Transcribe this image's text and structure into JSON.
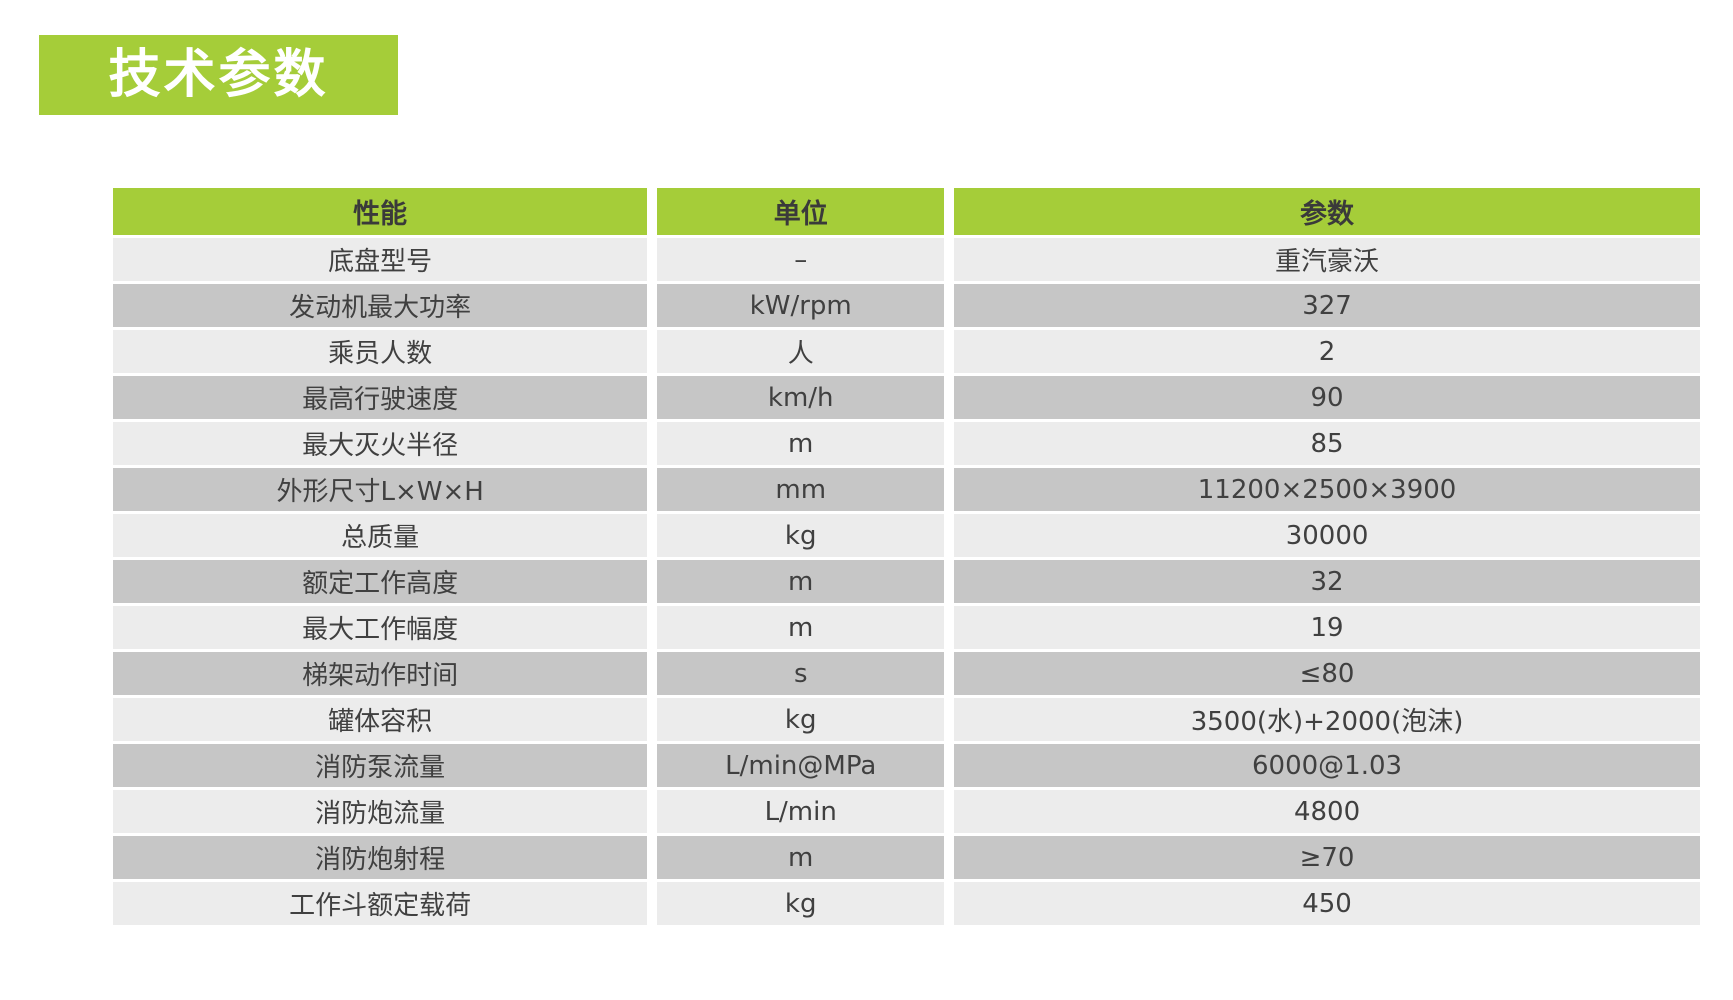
{
  "section": {
    "title": "技术参数"
  },
  "colors": {
    "accent_green": "#a5cd39",
    "row_light": "#ececec",
    "row_dark": "#c6c6c6",
    "header_text": "#3a3a3a",
    "body_text": "#404040",
    "title_text": "#ffffff"
  },
  "table": {
    "headers": [
      "性能",
      "单位",
      "参数"
    ],
    "rows": [
      [
        "底盘型号",
        "–",
        "重汽豪沃"
      ],
      [
        "发动机最大功率",
        "kW/rpm",
        "327"
      ],
      [
        "乘员人数",
        "人",
        "2"
      ],
      [
        "最高行驶速度",
        "km/h",
        "90"
      ],
      [
        "最大灭火半径",
        "m",
        "85"
      ],
      [
        "外形尺寸L×W×H",
        "mm",
        "11200×2500×3900"
      ],
      [
        "总质量",
        "kg",
        "30000"
      ],
      [
        "额定工作高度",
        "m",
        "32"
      ],
      [
        "最大工作幅度",
        "m",
        "19"
      ],
      [
        "梯架动作时间",
        "s",
        "≤80"
      ],
      [
        "罐体容积",
        "kg",
        "3500(水)+2000(泡沫)"
      ],
      [
        "消防泵流量",
        "L/min@MPa",
        "6000@1.03"
      ],
      [
        "消防炮流量",
        "L/min",
        "4800"
      ],
      [
        "消防炮射程",
        "m",
        "≥70"
      ],
      [
        "工作斗额定载荷",
        "kg",
        "450"
      ]
    ]
  }
}
